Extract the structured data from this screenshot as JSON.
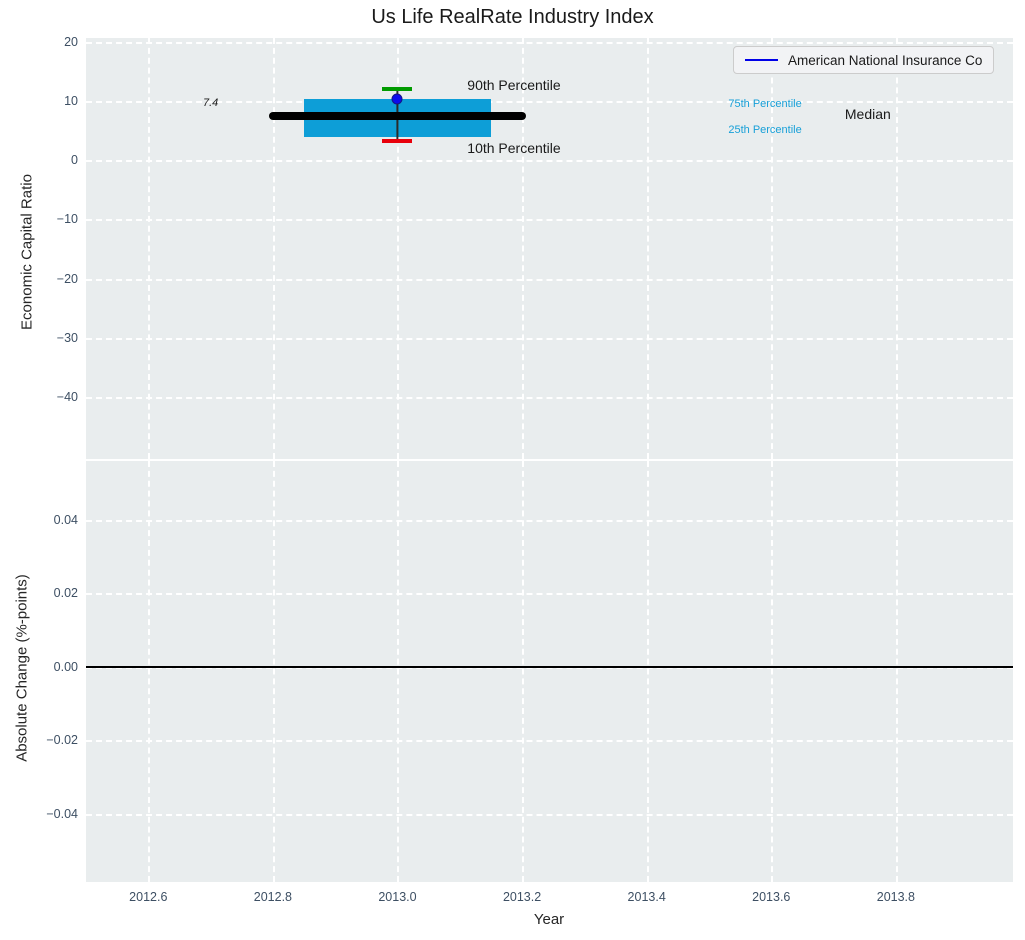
{
  "title": "Us Life RealRate Industry Index",
  "legend": {
    "label": "American National Insurance Co",
    "line_color": "#0000e8"
  },
  "colors": {
    "axes_background": "#e9edee",
    "grid": "#ffffff",
    "tick_label": "#3d4f63",
    "text": "#1a1a1a",
    "box_fill": "#0d9ed7",
    "median": "#000000",
    "whisker": "#2a2a2a",
    "cap_top": "#009b00",
    "cap_bottom": "#e8000b",
    "company_dot": "#0b0bed",
    "annotation_blue": "#18a0d8",
    "zero_line": "#000000"
  },
  "chart_data": [
    {
      "type": "boxplot",
      "title": "Us Life RealRate Industry Index",
      "xlabel": "Year",
      "ylabel": "Economic Capital Ratio",
      "xlim": [
        2012.5,
        2013.988
      ],
      "ylim": [
        -50.4,
        20.6
      ],
      "xticks": [
        2012.6,
        2012.8,
        2013.0,
        2013.2,
        2013.4,
        2013.6,
        2013.8
      ],
      "xtick_labels": [
        "2012.6",
        "2012.8",
        "2013.0",
        "2013.2",
        "2013.4",
        "2013.6",
        "2013.8"
      ],
      "yticks": [
        20,
        10,
        0,
        -10,
        -20,
        -30,
        -40
      ],
      "ytick_labels": [
        "20",
        "10",
        "0",
        "−10",
        "−20",
        "−30",
        "−40"
      ],
      "grid": "white-dashed",
      "legend_position": "upper right",
      "box": {
        "x": 2013.0,
        "box_left": 2012.85,
        "box_right": 2013.15,
        "p10": 3.2,
        "p25": 3.9,
        "median": 7.4,
        "p75": 10.3,
        "p90": 12.0,
        "median_line_start": 2012.8,
        "median_line_end": 2013.2,
        "company_point": {
          "name": "American National Insurance Co",
          "x": 2013.0,
          "y": 10.35
        }
      },
      "annotations": [
        {
          "text": "90th Percentile",
          "x": 2013.187,
          "y": 12.6,
          "size": 14,
          "color": "#1a1a1a",
          "italic": false
        },
        {
          "text": "10th Percentile",
          "x": 2013.187,
          "y": 2.0,
          "size": 14,
          "color": "#1a1a1a",
          "italic": false
        },
        {
          "text": "75th Percentile",
          "x": 2013.59,
          "y": 9.44,
          "size": 11,
          "color": "#18a0d8",
          "italic": false
        },
        {
          "text": "25th Percentile",
          "x": 2013.59,
          "y": 5.06,
          "size": 11,
          "color": "#18a0d8",
          "italic": false
        },
        {
          "text": "Median",
          "x": 2013.755,
          "y": 7.76,
          "size": 14,
          "color": "#1a1a1a",
          "italic": false
        },
        {
          "text": "7.4",
          "x": 2012.7,
          "y": 9.6,
          "size": 11,
          "color": "#1a1a1a",
          "italic": true
        }
      ]
    },
    {
      "type": "line",
      "xlabel": "Year",
      "ylabel": "Absolute Change (%-points)",
      "xlim": [
        2012.5,
        2013.988
      ],
      "ylim": [
        -0.0585,
        0.056
      ],
      "xticks": [
        2012.6,
        2012.8,
        2013.0,
        2013.2,
        2013.4,
        2013.6,
        2013.8
      ],
      "yticks": [
        0.04,
        0.02,
        0.0,
        -0.02,
        -0.04
      ],
      "ytick_labels": [
        "0.04",
        "0.02",
        "0.00",
        "−0.02",
        "−0.04"
      ],
      "grid": "white-dashed",
      "zero_line_y": 0.0,
      "series": []
    }
  ]
}
